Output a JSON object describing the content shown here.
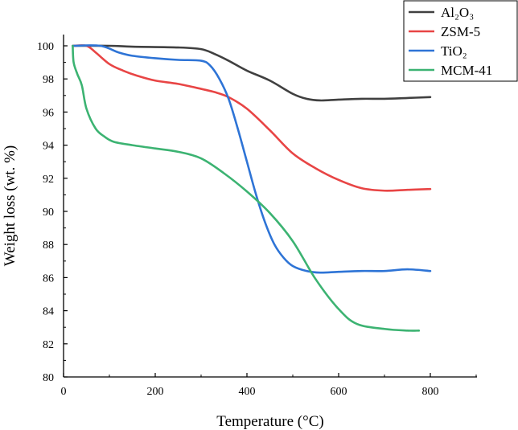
{
  "chart_data": {
    "type": "line",
    "title": "",
    "xlabel": "Temperature (°C)",
    "ylabel": "Weight loss (wt. %)",
    "xlim": [
      0,
      900
    ],
    "ylim": [
      80,
      100
    ],
    "x_ticks": [
      0,
      200,
      400,
      600,
      800
    ],
    "y_ticks": [
      80,
      82,
      84,
      86,
      88,
      90,
      92,
      94,
      96,
      98,
      100
    ],
    "grid": false,
    "legend": "top-right",
    "series": [
      {
        "name": "Al₂O₃",
        "color": "#404040",
        "points": [
          [
            20,
            100
          ],
          [
            100,
            100
          ],
          [
            150,
            99.95
          ],
          [
            250,
            99.9
          ],
          [
            300,
            99.8
          ],
          [
            330,
            99.5
          ],
          [
            360,
            99.1
          ],
          [
            400,
            98.5
          ],
          [
            450,
            97.9
          ],
          [
            500,
            97.1
          ],
          [
            530,
            96.8
          ],
          [
            560,
            96.7
          ],
          [
            600,
            96.75
          ],
          [
            650,
            96.8
          ],
          [
            700,
            96.8
          ],
          [
            750,
            96.85
          ],
          [
            800,
            96.9
          ]
        ]
      },
      {
        "name": "ZSM-5",
        "color": "#e84545",
        "points": [
          [
            20,
            100
          ],
          [
            50,
            100
          ],
          [
            70,
            99.6
          ],
          [
            100,
            98.9
          ],
          [
            130,
            98.5
          ],
          [
            160,
            98.2
          ],
          [
            200,
            97.9
          ],
          [
            250,
            97.7
          ],
          [
            300,
            97.4
          ],
          [
            330,
            97.2
          ],
          [
            360,
            96.9
          ],
          [
            400,
            96.2
          ],
          [
            450,
            94.9
          ],
          [
            500,
            93.5
          ],
          [
            550,
            92.6
          ],
          [
            600,
            91.9
          ],
          [
            650,
            91.4
          ],
          [
            700,
            91.25
          ],
          [
            750,
            91.3
          ],
          [
            800,
            91.35
          ]
        ]
      },
      {
        "name": "TiO₂",
        "color": "#2e74d6",
        "points": [
          [
            20,
            100
          ],
          [
            80,
            100
          ],
          [
            120,
            99.6
          ],
          [
            150,
            99.4
          ],
          [
            200,
            99.25
          ],
          [
            250,
            99.15
          ],
          [
            300,
            99.1
          ],
          [
            320,
            98.8
          ],
          [
            340,
            98.0
          ],
          [
            360,
            96.8
          ],
          [
            380,
            95.0
          ],
          [
            400,
            93.0
          ],
          [
            420,
            91.0
          ],
          [
            440,
            89.3
          ],
          [
            460,
            88.0
          ],
          [
            480,
            87.2
          ],
          [
            500,
            86.7
          ],
          [
            530,
            86.4
          ],
          [
            560,
            86.3
          ],
          [
            600,
            86.35
          ],
          [
            650,
            86.4
          ],
          [
            700,
            86.4
          ],
          [
            750,
            86.5
          ],
          [
            800,
            86.4
          ]
        ]
      },
      {
        "name": "MCM-41",
        "color": "#3cb372",
        "points": [
          [
            20,
            100
          ],
          [
            22,
            99.0
          ],
          [
            30,
            98.3
          ],
          [
            40,
            97.6
          ],
          [
            50,
            96.2
          ],
          [
            70,
            95.0
          ],
          [
            90,
            94.5
          ],
          [
            110,
            94.2
          ],
          [
            150,
            94.0
          ],
          [
            200,
            93.8
          ],
          [
            250,
            93.6
          ],
          [
            300,
            93.2
          ],
          [
            350,
            92.3
          ],
          [
            400,
            91.2
          ],
          [
            450,
            89.9
          ],
          [
            500,
            88.2
          ],
          [
            550,
            85.9
          ],
          [
            600,
            84.1
          ],
          [
            640,
            83.2
          ],
          [
            700,
            82.9
          ],
          [
            750,
            82.8
          ],
          [
            775,
            82.8
          ]
        ]
      }
    ]
  }
}
